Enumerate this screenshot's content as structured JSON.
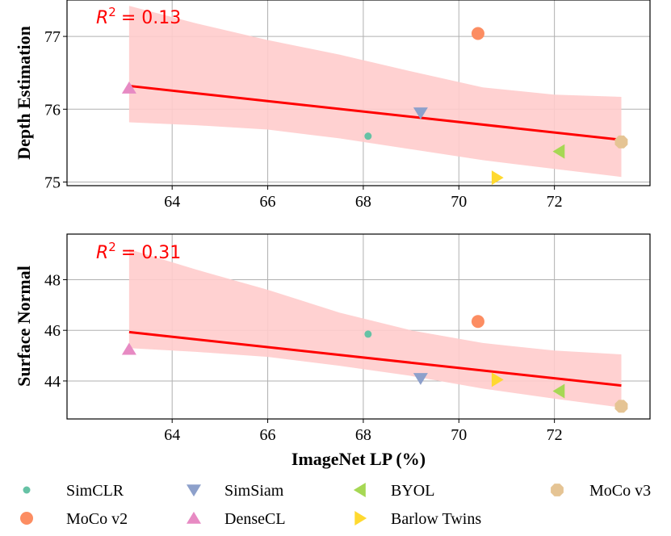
{
  "chart_data": [
    {
      "type": "scatter",
      "panel": "top",
      "xlabel": "",
      "ylabel": "Depth Estimation",
      "annotation": {
        "label": "R",
        "exponent": "2",
        "value": "= 0.13"
      },
      "xlim": [
        61.8,
        74.0
      ],
      "ylim": [
        74.95,
        77.5
      ],
      "xticks": [
        64,
        66,
        68,
        70,
        72
      ],
      "yticks": [
        75,
        76,
        77
      ],
      "points": [
        {
          "method": "SimCLR",
          "x": 68.1,
          "y": 75.63
        },
        {
          "method": "SimSiam",
          "x": 69.2,
          "y": 75.95
        },
        {
          "method": "BYOL",
          "x": 72.1,
          "y": 75.42
        },
        {
          "method": "MoCo v3",
          "x": 73.4,
          "y": 75.55
        },
        {
          "method": "MoCo v2",
          "x": 70.4,
          "y": 77.04
        },
        {
          "method": "DenseCL",
          "x": 63.1,
          "y": 76.29
        },
        {
          "method": "Barlow Twins",
          "x": 70.8,
          "y": 75.06
        }
      ],
      "fit_line": {
        "x": [
          63.1,
          73.4
        ],
        "y": [
          76.32,
          75.58
        ]
      },
      "confidence_band": {
        "x": [
          63.1,
          64.5,
          66.0,
          67.5,
          69.0,
          70.5,
          72.0,
          73.4
        ],
        "upper": [
          77.42,
          77.18,
          76.95,
          76.75,
          76.52,
          76.3,
          76.2,
          76.17
        ],
        "lower": [
          75.82,
          75.78,
          75.72,
          75.6,
          75.45,
          75.3,
          75.18,
          75.07
        ]
      }
    },
    {
      "type": "scatter",
      "panel": "bottom",
      "xlabel": "ImageNet LP (%)",
      "ylabel": "Surface Normal",
      "annotation": {
        "label": "R",
        "exponent": "2",
        "value": "= 0.31"
      },
      "xlim": [
        61.8,
        74.0
      ],
      "ylim": [
        42.5,
        49.8
      ],
      "xticks": [
        64,
        66,
        68,
        70,
        72
      ],
      "yticks": [
        44,
        46,
        48
      ],
      "points": [
        {
          "method": "SimCLR",
          "x": 68.1,
          "y": 45.85
        },
        {
          "method": "SimSiam",
          "x": 69.2,
          "y": 44.1
        },
        {
          "method": "BYOL",
          "x": 72.1,
          "y": 43.6
        },
        {
          "method": "MoCo v3",
          "x": 73.4,
          "y": 43.0
        },
        {
          "method": "MoCo v2",
          "x": 70.4,
          "y": 46.35
        },
        {
          "method": "DenseCL",
          "x": 63.1,
          "y": 45.25
        },
        {
          "method": "Barlow Twins",
          "x": 70.8,
          "y": 44.05
        }
      ],
      "fit_line": {
        "x": [
          63.1,
          73.4
        ],
        "y": [
          45.93,
          43.82
        ]
      },
      "confidence_band": {
        "x": [
          63.1,
          64.5,
          66.0,
          67.5,
          69.0,
          70.5,
          72.0,
          73.4
        ],
        "upper": [
          49.2,
          48.4,
          47.6,
          46.7,
          46.0,
          45.5,
          45.2,
          45.05
        ],
        "lower": [
          45.3,
          45.15,
          44.95,
          44.6,
          44.2,
          43.7,
          43.3,
          42.95
        ]
      }
    }
  ],
  "colors": {
    "fit_line": "#ff0000",
    "band": "#ffcccc",
    "grid": "#b0b0b0"
  },
  "legend": [
    {
      "label": "SimCLR",
      "marker": "circle-small",
      "color": "#66c2a5"
    },
    {
      "label": "SimSiam",
      "marker": "triangle-down",
      "color": "#8da0cb"
    },
    {
      "label": "BYOL",
      "marker": "triangle-left",
      "color": "#a6d854"
    },
    {
      "label": "MoCo v3",
      "marker": "octagon",
      "color": "#e5c494"
    },
    {
      "label": "MoCo v2",
      "marker": "circle-large",
      "color": "#fc8d62"
    },
    {
      "label": "DenseCL",
      "marker": "triangle-up",
      "color": "#e78ac3"
    },
    {
      "label": "Barlow Twins",
      "marker": "triangle-right",
      "color": "#ffd92f"
    }
  ]
}
